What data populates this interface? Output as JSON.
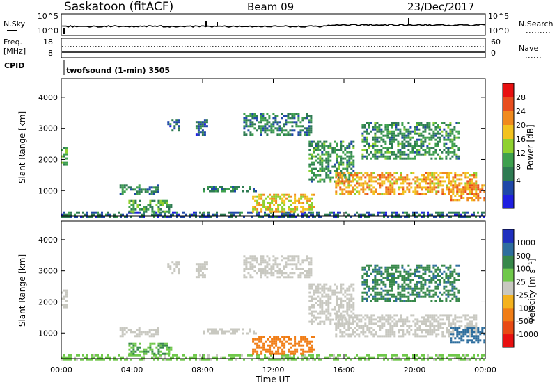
{
  "header": {
    "station": "Saskatoon (fitACF)",
    "beam": "Beam 09",
    "date": "23/Dec/2017"
  },
  "strip_noise": {
    "left_label": "N.Sky",
    "left_ticks": [
      "10^5",
      "10^0"
    ],
    "right_label": "N.Search",
    "right_ticks": [
      "10^5",
      "10^0"
    ]
  },
  "strip_freq": {
    "left_label_1": "Freq.",
    "left_label_2": "[MHz]",
    "left_ticks": [
      "18",
      "8"
    ],
    "right_label": "Nave",
    "right_ticks": [
      "60",
      "0"
    ],
    "cpid_label": "CPID",
    "cpid_text": "twofsound (1-min) 3505"
  },
  "x_axis": {
    "label": "Time UT",
    "ticks": [
      "00:00",
      "04:00",
      "08:00",
      "12:00",
      "16:00",
      "20:00",
      "00:00"
    ]
  },
  "panels": {
    "power": {
      "ylabel": "Slant Range [km]",
      "colorbar_label": "Power [dB]",
      "colorbar_ticks": [
        "28",
        "24",
        "20",
        "16",
        "12",
        "8",
        "4"
      ]
    },
    "velocity": {
      "ylabel": "Slant Range [km]",
      "colorbar_label": "Velocity [m s⁻¹]",
      "colorbar_ticks": [
        "1000",
        "500",
        "100",
        "25",
        "-25",
        "-100",
        "-500",
        "-1000"
      ]
    }
  },
  "chart_data": {
    "type": "heatmap",
    "x_range_hours": [
      0,
      24
    ],
    "y_range_km": [
      180,
      4600
    ],
    "y_ticks": [
      1000,
      2000,
      3000,
      4000
    ],
    "power_colors": [
      "#1f1fe0",
      "#1f48a8",
      "#2e7b52",
      "#3ea04e",
      "#8fd12f",
      "#f2c21f",
      "#f08a1e",
      "#e84d1e",
      "#e81010"
    ],
    "velocity_colors": [
      "#1f2fbf",
      "#2e6e9e",
      "#37884a",
      "#6fc84a",
      "#c8c8c0",
      "#f4b21e",
      "#f07d16",
      "#e84a14",
      "#e81010"
    ],
    "echo_regions": [
      {
        "t0": 0.0,
        "t1": 0.35,
        "r0": 1800,
        "r1": 2400,
        "power": 14,
        "vel": 0
      },
      {
        "t0": 0.0,
        "t1": 24.0,
        "r0": 180,
        "r1": 320,
        "power": 8,
        "vel": 40
      },
      {
        "t0": 3.3,
        "t1": 5.5,
        "r0": 900,
        "r1": 1200,
        "power": 10,
        "vel": 0
      },
      {
        "t0": 3.8,
        "t1": 6.2,
        "r0": 300,
        "r1": 700,
        "power": 14,
        "vel": 60
      },
      {
        "t0": 6.0,
        "t1": 6.6,
        "r0": 2900,
        "r1": 3300,
        "power": 8,
        "vel": 0
      },
      {
        "t0": 7.6,
        "t1": 8.3,
        "r0": 2800,
        "r1": 3300,
        "power": 8,
        "vel": 0
      },
      {
        "t0": 8.0,
        "t1": 11.0,
        "r0": 950,
        "r1": 1150,
        "power": 10,
        "vel": 0
      },
      {
        "t0": 10.3,
        "t1": 14.1,
        "r0": 2800,
        "r1": 3500,
        "power": 10,
        "vel": 0
      },
      {
        "t0": 10.8,
        "t1": 14.3,
        "r0": 350,
        "r1": 900,
        "power": 22,
        "vel": -150
      },
      {
        "t0": 14.0,
        "t1": 16.5,
        "r0": 1300,
        "r1": 2600,
        "power": 12,
        "vel": 0
      },
      {
        "t0": 15.5,
        "t1": 23.5,
        "r0": 900,
        "r1": 1600,
        "power": 24,
        "vel": 0
      },
      {
        "t0": 17.0,
        "t1": 22.5,
        "r0": 2000,
        "r1": 3200,
        "power": 12,
        "vel": 90
      },
      {
        "t0": 22.0,
        "t1": 24.0,
        "r0": 700,
        "r1": 1200,
        "power": 26,
        "vel": 150
      }
    ]
  }
}
